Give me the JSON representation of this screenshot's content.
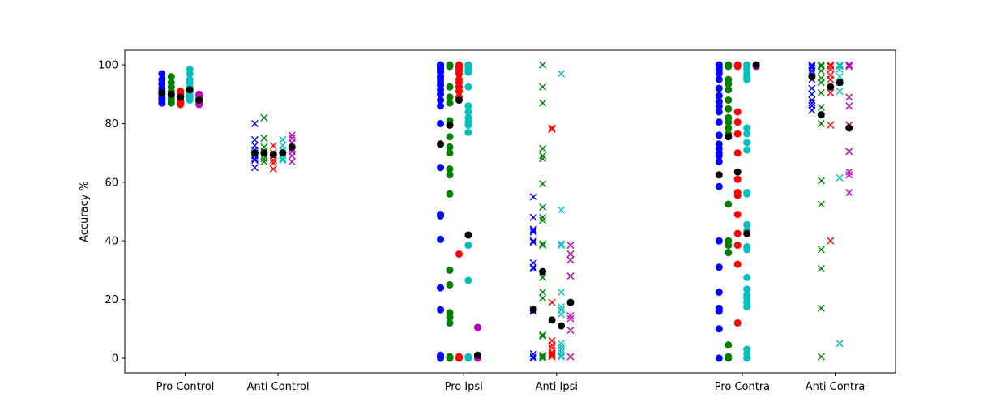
{
  "chart_data": {
    "type": "scatter",
    "title": "",
    "xlabel": "",
    "ylabel": "Accuracy %",
    "ylim": [
      -5,
      105
    ],
    "yticks": [
      0,
      20,
      40,
      60,
      80,
      100
    ],
    "grid": false,
    "legend": "none",
    "categories": [
      "Pro Control",
      "Anti Control",
      "Pro Ipsi",
      "Anti Ipsi",
      "Pro Contra",
      "Anti Contra"
    ],
    "category_positions": [
      1,
      2,
      4,
      5,
      7,
      8
    ],
    "xlim": [
      0.35,
      8.65
    ],
    "marker_by_category": [
      "o",
      "x",
      "o",
      "x",
      "o",
      "x"
    ],
    "subject_colors": [
      "#0000ff",
      "#008000",
      "#ff0000",
      "#00bfbf",
      "#bf00bf"
    ],
    "mean_color": "#000000",
    "series": [
      {
        "color": "#0000ff",
        "offset": -0.25,
        "values": [
          [
            97,
            95,
            93.5,
            92,
            91,
            90.5,
            90,
            89,
            88.5,
            88,
            87
          ],
          [
            80,
            74.5,
            72.5,
            71,
            70,
            69,
            68,
            67.5,
            65
          ],
          [
            100,
            100,
            99.5,
            99,
            98.5,
            97.5,
            96,
            95,
            94,
            93,
            91.5,
            90,
            88,
            86,
            80,
            73,
            65,
            49,
            48.5,
            40.5,
            24,
            16.5,
            1,
            0.5,
            0
          ],
          [
            55,
            48,
            44,
            43.5,
            43,
            40,
            39.5,
            32.5,
            31,
            30.5,
            16.5,
            16,
            1.5,
            0.5,
            0,
            0
          ],
          [
            100,
            99,
            98,
            97,
            95,
            92,
            89.5,
            87.5,
            86,
            84,
            80.5,
            76,
            73,
            71.5,
            70,
            69,
            67,
            58.5,
            40,
            31,
            22.5,
            17,
            16,
            10,
            0
          ],
          [
            100,
            99.5,
            99,
            98,
            97,
            95,
            92,
            90,
            88,
            87,
            86,
            84.5
          ]
        ]
      },
      {
        "color": "#008000",
        "offset": -0.15,
        "values": [
          [
            96,
            94,
            92.5,
            91,
            90,
            89,
            88,
            87
          ],
          [
            82,
            75,
            72,
            70.5,
            69,
            68,
            67
          ],
          [
            100,
            99.5,
            92.5,
            89,
            87,
            81,
            79.5,
            75.5,
            72,
            70,
            64.5,
            62.5,
            56,
            30,
            25,
            15.5,
            14,
            12,
            0.5,
            0
          ],
          [
            100,
            92.5,
            87,
            71.5,
            69,
            68,
            59.5,
            51.5,
            48,
            47,
            39,
            38.5,
            27.5,
            22.5,
            20.5,
            8,
            7.5,
            1,
            0.5,
            0
          ],
          [
            100,
            99.5,
            95,
            93.5,
            91.5,
            88,
            85,
            82,
            80.5,
            78.5,
            76.5,
            52.5,
            40,
            38.5,
            36,
            4.5,
            0.5,
            0
          ],
          [
            100,
            99.5,
            98,
            95.5,
            94,
            90.5,
            85.5,
            80,
            60.5,
            52.5,
            37,
            30.5,
            17,
            0.5
          ]
        ]
      },
      {
        "color": "#ff0000",
        "offset": -0.05,
        "values": [
          [
            91,
            90,
            89,
            88,
            87,
            86.5
          ],
          [
            72.5,
            70,
            69,
            67.5,
            66.5,
            64.5
          ],
          [
            100,
            99.5,
            99,
            98,
            97,
            95,
            94,
            92.5,
            91,
            89,
            35.5,
            0.5,
            0
          ],
          [
            78.5,
            78,
            19,
            6,
            4.5,
            3.5,
            2,
            1.5,
            1,
            0.5
          ],
          [
            100,
            99.5,
            84,
            80.5,
            76.5,
            70,
            61,
            56.5,
            55.5,
            49,
            42.5,
            38.5,
            32,
            12
          ],
          [
            100,
            99.5,
            98.5,
            96.5,
            95,
            90.5,
            79.5,
            40
          ]
        ]
      },
      {
        "color": "#00bfbf",
        "offset": 0.05,
        "values": [
          [
            98.5,
            97,
            95,
            94,
            92.5,
            91,
            90,
            89,
            88
          ],
          [
            74.5,
            72.5,
            71,
            70,
            69,
            68,
            67.5
          ],
          [
            100,
            99.5,
            99,
            98,
            97.5,
            92.5,
            86,
            84,
            82,
            80.5,
            79.5,
            77,
            38.5,
            26.5,
            0.5,
            0
          ],
          [
            97,
            50.5,
            39,
            38.5,
            22.5,
            17.5,
            16.5,
            15,
            5,
            4,
            3,
            2,
            1,
            0.5
          ],
          [
            100,
            99.5,
            98.5,
            97,
            96,
            95,
            78.5,
            76.5,
            73.5,
            71,
            56.5,
            56,
            45.5,
            43.5,
            38,
            37,
            27.5,
            23.5,
            21.5,
            20.5,
            19,
            17.5,
            3,
            1.5,
            0
          ],
          [
            100,
            99.5,
            98.5,
            96,
            94,
            91,
            61.5,
            5
          ]
        ]
      },
      {
        "color": "#bf00bf",
        "offset": 0.15,
        "values": [
          [
            90,
            89.5,
            88.5,
            88,
            87.5,
            86.5
          ],
          [
            76,
            75,
            73.5,
            71.5,
            70.5,
            69,
            67
          ],
          [
            10.5,
            1,
            0.5,
            0
          ],
          [
            38.5,
            35.5,
            33.5,
            28,
            14.5,
            13.5,
            9.5,
            0.5
          ],
          [
            100,
            99.5
          ],
          [
            100,
            99.5,
            89,
            86,
            79.5,
            70.5,
            63.5,
            62.5,
            56.5
          ]
        ]
      },
      {
        "color": "#000000",
        "label_role": "mean",
        "per_subject": true,
        "values": [
          [
            90.5,
            90,
            89,
            91.5,
            88
          ],
          [
            70,
            70,
            69.5,
            70,
            72
          ],
          [
            73,
            79.5,
            88,
            42,
            1
          ],
          [
            16.5,
            29.5,
            13,
            11,
            19
          ],
          [
            62.5,
            75.5,
            63.5,
            42.5,
            100
          ],
          [
            96,
            83,
            92.5,
            94,
            78.5
          ]
        ]
      }
    ]
  }
}
